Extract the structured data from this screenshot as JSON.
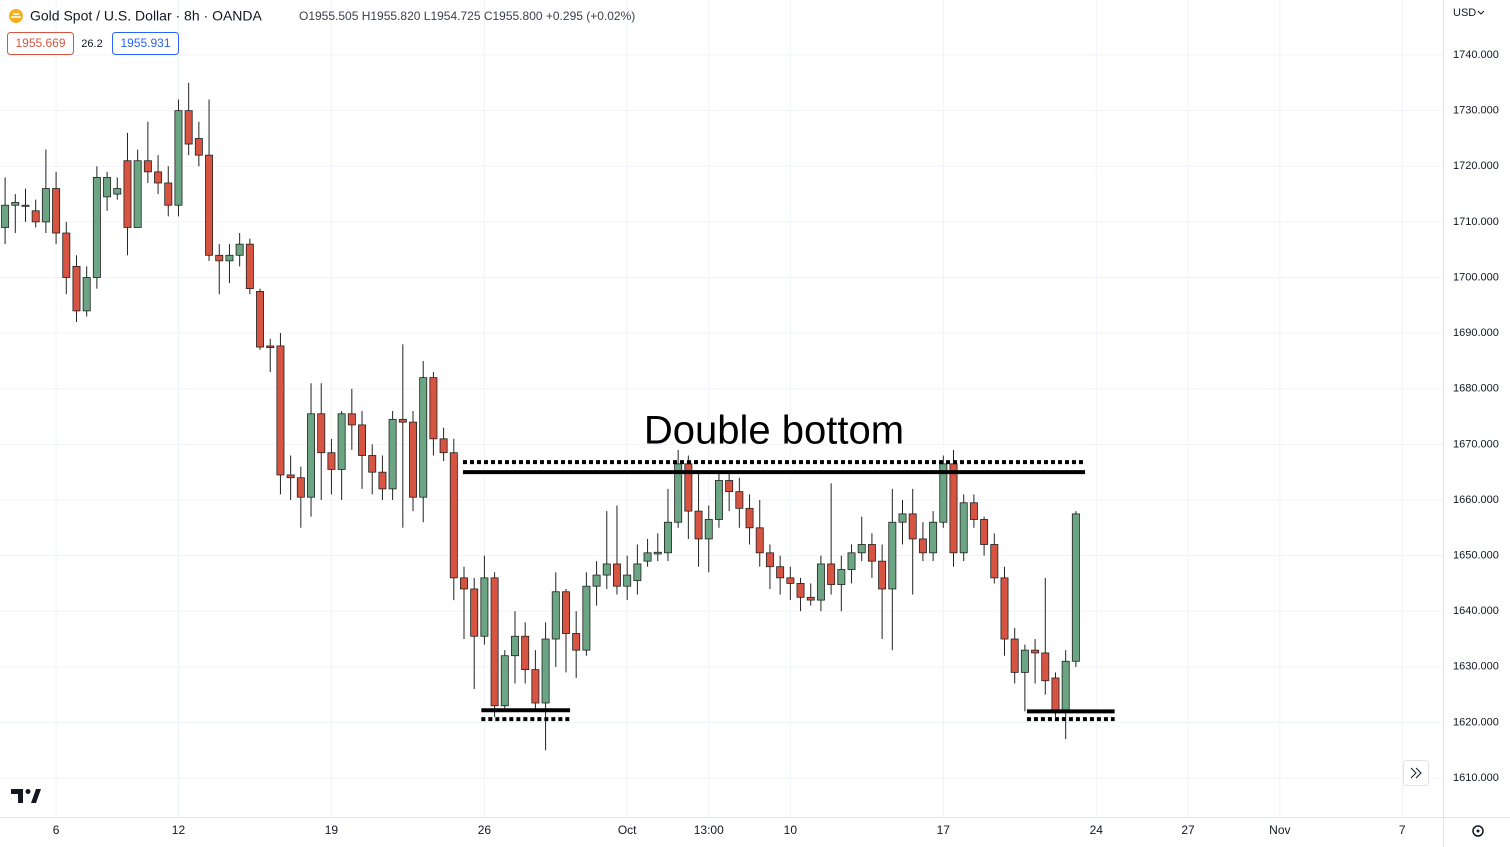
{
  "chart_data": {
    "type": "candlestick",
    "title": "Gold Spot / U.S. Dollar · 8h · OANDA",
    "ohlc_readout": "O1955.505 H1955.820 L1954.725 C1955.800 +0.295 (+0.02%)",
    "sell_price": "1955.669",
    "spread": "26.2",
    "buy_price": "1955.931",
    "currency": "USD",
    "annotation": "Double bottom",
    "colors": {
      "up": "#6ba583",
      "down": "#d75442",
      "outline": "#222222"
    },
    "grid": true,
    "x": [
      0,
      1,
      2,
      3,
      4,
      5,
      6,
      7,
      8,
      9,
      10,
      11,
      12,
      13,
      14,
      15,
      16,
      17,
      18,
      19,
      20,
      21,
      22,
      23,
      24,
      25,
      26,
      27,
      28,
      29,
      30,
      31,
      32,
      33,
      34,
      35,
      36,
      37,
      38,
      39,
      40,
      41,
      42,
      43,
      44,
      45,
      46,
      47,
      48,
      49,
      50,
      51,
      52,
      53,
      54,
      55,
      56,
      57,
      58,
      59,
      60,
      61,
      62,
      63,
      64,
      65,
      66,
      67,
      68,
      69,
      70,
      71,
      72,
      73,
      74,
      75,
      76,
      77,
      78,
      79,
      80,
      81,
      82,
      83,
      84,
      85,
      86,
      87,
      88,
      89,
      90,
      91,
      92,
      93,
      94,
      95,
      96,
      97,
      98,
      99,
      100,
      101,
      102,
      103,
      104,
      105
    ],
    "open": [
      1709,
      1713,
      1713,
      1712,
      1710,
      1716,
      1708,
      1702,
      1694,
      1700,
      1714.5,
      1715,
      1721,
      1709,
      1721,
      1719,
      1717,
      1713,
      1730,
      1725,
      1722,
      1704,
      1703,
      1704,
      1706,
      1697.5,
      1687.7,
      1687.7,
      1664.5,
      1664,
      1660.5,
      1675.5,
      1668.5,
      1665.5,
      1675.5,
      1673.5,
      1668,
      1665,
      1662,
      1674.5,
      1674,
      1660.5,
      1682,
      1671,
      1668.5,
      1646,
      1644,
      1635.5,
      1646,
      1623,
      1632,
      1635.5,
      1629.5,
      1623.5,
      1635,
      1643.5,
      1636,
      1633,
      1644.5,
      1646.5,
      1648.5,
      1644.5,
      1645.5,
      1649,
      1650.3,
      1650.5,
      1656,
      1666.5,
      1658,
      1653,
      1656.5,
      1663.5,
      1661.5,
      1658.5,
      1655,
      1650.5,
      1648,
      1646,
      1645,
      1642.5,
      1642,
      1648.5,
      1644.8,
      1647.5,
      1650.5,
      1652,
      1649,
      1644,
      1656,
      1657.5,
      1653,
      1650.5,
      1656,
      1666.5,
      1650.5,
      1659.5,
      1656.5,
      1652,
      1646,
      1635,
      1629,
      1633,
      1632.5,
      1628,
      1622,
      1631
    ],
    "high": [
      1718,
      1715,
      1716,
      1714,
      1723,
      1719,
      1710,
      1704,
      1702,
      1720,
      1719,
      1718,
      1726,
      1723,
      1728,
      1722,
      1720,
      1732,
      1735,
      1728,
      1732,
      1706,
      1706,
      1708,
      1707,
      1698,
      1689,
      1690,
      1668,
      1666,
      1681,
      1681,
      1671,
      1676,
      1680,
      1676,
      1670,
      1668,
      1676,
      1688,
      1676,
      1685,
      1683,
      1673,
      1671,
      1648,
      1646,
      1650,
      1647,
      1633,
      1640,
      1638,
      1633,
      1638,
      1647,
      1644,
      1640,
      1647,
      1649,
      1658,
      1659,
      1650,
      1652,
      1653,
      1654,
      1662,
      1669,
      1668,
      1665,
      1659,
      1665,
      1665,
      1664,
      1661,
      1660,
      1652,
      1650,
      1648,
      1646,
      1645,
      1650,
      1663,
      1650,
      1652,
      1657,
      1654,
      1652,
      1662,
      1660,
      1662,
      1656,
      1658,
      1668,
      1669,
      1661,
      1661,
      1657,
      1654,
      1648,
      1637,
      1634,
      1635,
      1646,
      1629,
      1633,
      1658
    ],
    "low": [
      1706,
      1708,
      1710,
      1709,
      1708,
      1706,
      1697,
      1692,
      1693,
      1698,
      1712,
      1714,
      1704,
      1709,
      1717,
      1715,
      1711,
      1711,
      1722,
      1720,
      1703,
      1697,
      1699,
      1702,
      1697,
      1687,
      1683,
      1661,
      1660,
      1655,
      1657,
      1660,
      1661,
      1660,
      1669,
      1662,
      1661,
      1660,
      1660,
      1655,
      1658,
      1656,
      1668,
      1667,
      1642,
      1635,
      1626,
      1634,
      1621,
      1622,
      1627,
      1627,
      1622,
      1615,
      1630,
      1629,
      1628,
      1632,
      1641,
      1644,
      1643,
      1642,
      1643,
      1648,
      1649,
      1649,
      1655,
      1653,
      1648,
      1647,
      1655,
      1658,
      1655,
      1652,
      1648,
      1644,
      1643,
      1642,
      1640,
      1641,
      1640,
      1643,
      1640,
      1645,
      1649,
      1646,
      1635,
      1633,
      1652,
      1643,
      1649,
      1649,
      1655,
      1648,
      1649,
      1655,
      1650,
      1645,
      1632,
      1627,
      1622,
      1627,
      1625,
      1621,
      1617,
      1630
    ],
    "close": [
      1713,
      1713.5,
      1712.8,
      1710,
      1716,
      1708,
      1700,
      1694,
      1700,
      1718,
      1718,
      1716,
      1709,
      1721,
      1719,
      1717,
      1713,
      1730,
      1724,
      1722,
      1704,
      1703,
      1704,
      1706,
      1698,
      1687.5,
      1687.4,
      1664.5,
      1664,
      1660.5,
      1675.5,
      1668.5,
      1665.5,
      1675.5,
      1673.5,
      1668,
      1665,
      1662,
      1674.5,
      1674,
      1660.5,
      1682,
      1671,
      1668.5,
      1646,
      1644,
      1635.5,
      1646,
      1623,
      1632,
      1635.5,
      1629.5,
      1623.5,
      1635,
      1643.5,
      1636,
      1633,
      1644.5,
      1646.5,
      1648.5,
      1644.5,
      1646.5,
      1648.5,
      1650.5,
      1650.6,
      1656,
      1666.5,
      1658,
      1653,
      1656.5,
      1663.5,
      1661.5,
      1658.5,
      1655,
      1650.5,
      1648,
      1646,
      1645,
      1642.5,
      1642,
      1648.5,
      1644.8,
      1647.5,
      1650.5,
      1652,
      1649,
      1644,
      1656,
      1657.5,
      1653,
      1650.5,
      1656,
      1666.5,
      1650.5,
      1659.5,
      1656.5,
      1652,
      1646,
      1635,
      1629,
      1633,
      1632.5,
      1627.5,
      1622,
      1631,
      1657.5
    ],
    "lines": [
      {
        "value": 1665,
        "x": [
          44.9,
          105.9
        ],
        "style": "solid"
      },
      {
        "value": 1666.8,
        "x": [
          44.9,
          105.9
        ],
        "style": "dotted"
      },
      {
        "value": 1622.2,
        "x": [
          46.7,
          55.4
        ],
        "style": "solid"
      },
      {
        "value": 1620.6,
        "x": [
          46.7,
          55.4
        ],
        "style": "dotted"
      },
      {
        "value": 1622,
        "x": [
          100.2,
          108.8
        ],
        "style": "solid"
      },
      {
        "value": 1620.6,
        "x": [
          100.2,
          108.8
        ],
        "style": "dotted"
      }
    ],
    "xlim": [
      -0.5,
      141
    ],
    "xticks": [
      {
        "value": 5,
        "label": "6"
      },
      {
        "value": 17,
        "label": "12"
      },
      {
        "value": 32,
        "label": "19"
      },
      {
        "value": 47,
        "label": "26"
      },
      {
        "value": 61,
        "label": "Oct"
      },
      {
        "value": 69,
        "label": "13:00"
      },
      {
        "value": 77,
        "label": "10"
      },
      {
        "value": 92,
        "label": "17"
      },
      {
        "value": 107,
        "label": "24"
      },
      {
        "value": 116,
        "label": "27"
      },
      {
        "value": 125,
        "label": "Nov"
      },
      {
        "value": 137,
        "label": "7"
      }
    ],
    "ylim": [
      1603,
      1749.9
    ],
    "yticks": [
      {
        "value": 1610,
        "label": "1610.000"
      },
      {
        "value": 1620,
        "label": "1620.000"
      },
      {
        "value": 1630,
        "label": "1630.000"
      },
      {
        "value": 1640,
        "label": "1640.000"
      },
      {
        "value": 1650,
        "label": "1650.000"
      },
      {
        "value": 1660,
        "label": "1660.000"
      },
      {
        "value": 1670,
        "label": "1670.000"
      },
      {
        "value": 1680,
        "label": "1680.000"
      },
      {
        "value": 1690,
        "label": "1690.000"
      },
      {
        "value": 1700,
        "label": "1700.000"
      },
      {
        "value": 1710,
        "label": "1710.000"
      },
      {
        "value": 1720,
        "label": "1720.000"
      },
      {
        "value": 1730,
        "label": "1730.000"
      },
      {
        "value": 1740,
        "label": "1740.000"
      }
    ]
  }
}
